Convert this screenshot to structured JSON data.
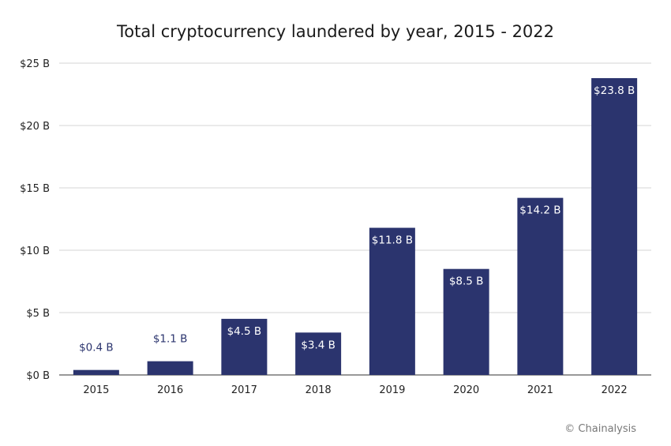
{
  "chart_data": {
    "type": "bar",
    "title": "Total cryptocurrency laundered by year, 2015 - 2022",
    "categories": [
      "2015",
      "2016",
      "2017",
      "2018",
      "2019",
      "2020",
      "2021",
      "2022"
    ],
    "values": [
      0.4,
      1.1,
      4.5,
      3.4,
      11.8,
      8.5,
      14.2,
      23.8
    ],
    "data_labels": [
      "$0.4 B",
      "$1.1 B",
      "$4.5 B",
      "$3.4 B",
      "$11.8 B",
      "$8.5 B",
      "$14.2 B",
      "$23.8 B"
    ],
    "xlabel": "",
    "ylabel": "",
    "ylim": [
      0,
      25
    ],
    "yticks": [
      0,
      5,
      10,
      15,
      20,
      25
    ],
    "ytick_labels": [
      "$0 B",
      "$5 B",
      "$10 B",
      "$15 B",
      "$20 B",
      "$25 B"
    ],
    "grid": true,
    "bar_color": "#2b346e",
    "label_color_outside": "#2b346e",
    "label_color_inside": "#ffffff"
  },
  "credit": "© Chainalysis"
}
